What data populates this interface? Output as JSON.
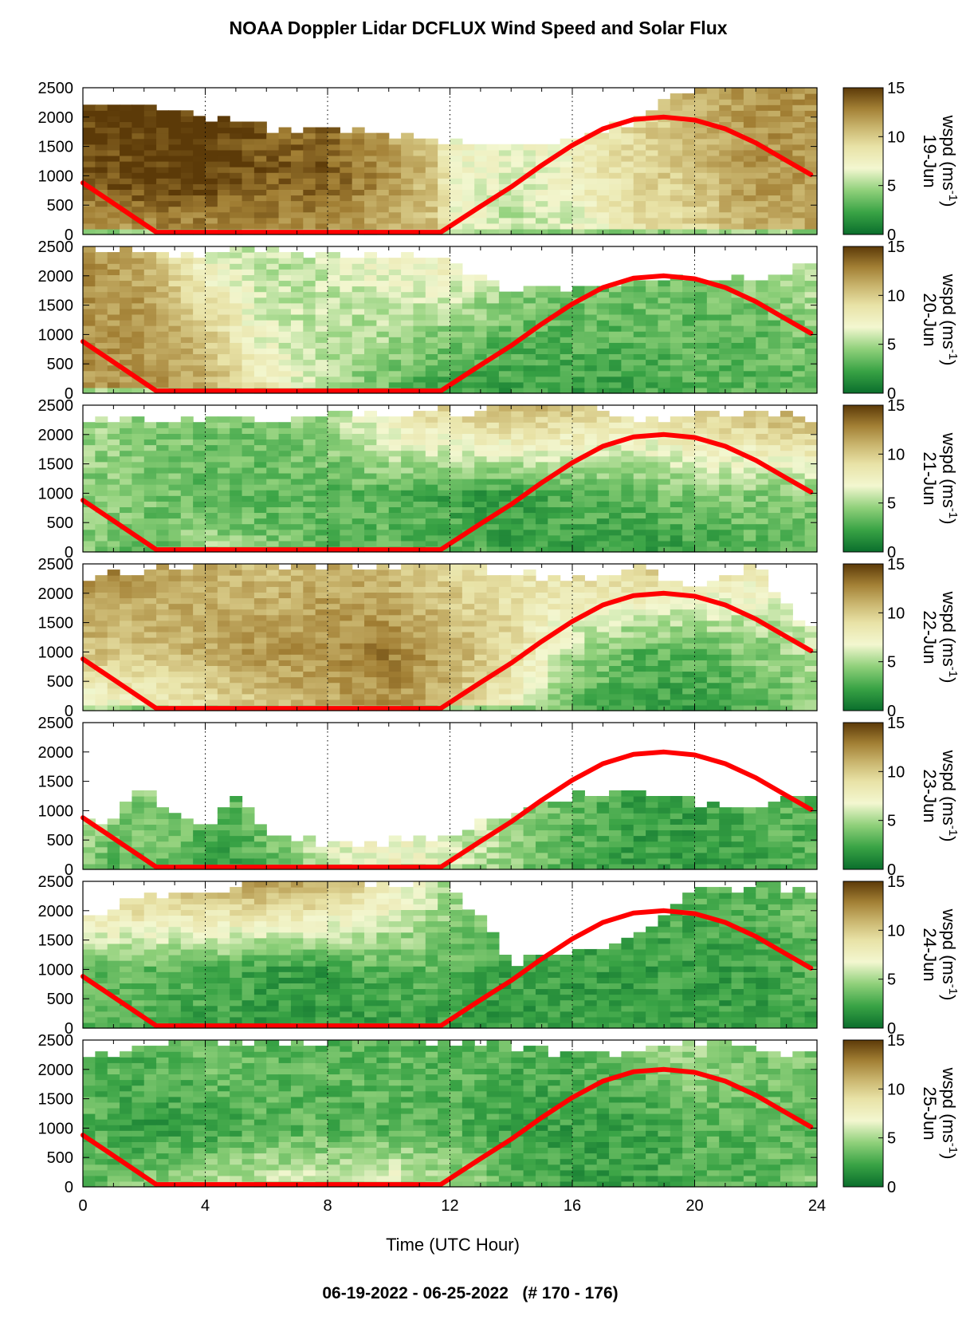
{
  "title": "NOAA Doppler Lidar DCFLUX Wind Speed and Solar Flux",
  "footer": "06-19-2022 - 06-25-2022   (# 170 - 176)",
  "chart_data": {
    "type": "heatmap",
    "x": {
      "label": "Time (UTC Hour)",
      "range": [
        0,
        24
      ],
      "ticks": [
        "0",
        "4",
        "8",
        "12",
        "16",
        "20",
        "24"
      ],
      "grid": "dotted vertical lines at 4, 8, 12, 16, 20"
    },
    "y": {
      "range": [
        0,
        2500
      ],
      "ticks": [
        "0",
        "500",
        "1000",
        "1500",
        "2000",
        "2500"
      ]
    },
    "colorbar": {
      "range": [
        0,
        15
      ],
      "ticks": [
        "0",
        "5",
        "10",
        "15"
      ],
      "label_prefix": "wspd (ms",
      "label_sup": "-1",
      "label_suffix": ")",
      "colors": [
        "#0a6e2c",
        "#39a345",
        "#8fd07a",
        "#f3f7d0",
        "#e8e2a6",
        "#c9b56e",
        "#a27f34",
        "#5c3a08"
      ]
    },
    "solar_flux_curve": {
      "color": "#ff0000",
      "x": [
        0,
        2.4,
        11.7,
        13,
        14,
        15,
        16,
        17,
        18,
        19,
        20,
        21,
        22,
        23,
        23.8
      ],
      "y": [
        880,
        40,
        40,
        480,
        810,
        1180,
        1520,
        1800,
        1960,
        2000,
        1950,
        1800,
        1560,
        1260,
        1020
      ]
    },
    "panels": [
      {
        "day": "19-Jun",
        "profile": {
          "x": [
            0,
            2,
            4,
            6,
            8,
            10,
            11.5,
            12,
            14,
            16,
            18,
            20,
            22,
            24
          ],
          "top": [
            2150,
            2200,
            2000,
            1800,
            1700,
            1650,
            1550,
            1500,
            1450,
            1650,
            1900,
            2450,
            2500,
            2500
          ],
          "low": [
            11,
            12,
            12,
            12,
            12,
            11,
            10,
            7,
            5,
            6,
            8,
            9,
            11,
            11
          ],
          "mid": [
            14,
            15,
            15,
            14,
            14,
            12,
            10,
            7,
            6,
            7,
            9,
            10,
            12,
            12
          ],
          "up": [
            15,
            15,
            15,
            14,
            13,
            11,
            9,
            7,
            7,
            8,
            9,
            11,
            12,
            12
          ]
        }
      },
      {
        "day": "20-Jun",
        "profile": {
          "x": [
            0,
            2,
            4,
            6,
            8,
            10,
            12,
            14,
            16,
            18,
            20,
            22,
            24
          ],
          "top": [
            2400,
            2350,
            2350,
            2400,
            2350,
            2300,
            2200,
            1700,
            1750,
            1850,
            1900,
            1900,
            2200
          ],
          "low": [
            12,
            12,
            11,
            8,
            5,
            3,
            2,
            2,
            2,
            2,
            3,
            3,
            3
          ],
          "mid": [
            12,
            12,
            10,
            6,
            5,
            5,
            4,
            3,
            3,
            3,
            3,
            3,
            4
          ],
          "up": [
            12,
            11,
            6,
            5,
            6,
            7,
            8,
            6,
            4,
            4,
            4,
            5,
            6
          ]
        }
      },
      {
        "day": "21-Jun",
        "profile": {
          "x": [
            0,
            2,
            4,
            6,
            8,
            10,
            12,
            14,
            16,
            18,
            20,
            22,
            24
          ],
          "top": [
            2250,
            2200,
            2200,
            2250,
            2250,
            2300,
            2350,
            2450,
            2450,
            2200,
            2300,
            2350,
            2200
          ],
          "low": [
            4,
            3,
            5,
            4,
            3,
            3,
            3,
            2,
            2,
            2,
            2,
            3,
            3
          ],
          "mid": [
            4,
            4,
            3,
            3,
            3,
            3,
            2,
            2,
            3,
            3,
            4,
            4,
            4
          ],
          "up": [
            5,
            4,
            4,
            4,
            5,
            8,
            10,
            11,
            10,
            9,
            10,
            11,
            12
          ]
        }
      },
      {
        "day": "22-Jun",
        "profile": {
          "x": [
            0,
            2,
            4,
            6,
            8,
            10,
            12,
            14,
            16,
            18,
            20,
            22,
            23.8
          ],
          "top": [
            2200,
            2350,
            2450,
            2450,
            2450,
            2450,
            2450,
            2300,
            2200,
            2450,
            2000,
            2450,
            1300
          ],
          "low": [
            6,
            7,
            8,
            10,
            11,
            12,
            10,
            7,
            3,
            2,
            2,
            3,
            4
          ],
          "mid": [
            10,
            10,
            11,
            12,
            12,
            13,
            11,
            9,
            5,
            3,
            3,
            4,
            5
          ],
          "up": [
            13,
            12,
            11,
            10,
            11,
            10,
            9,
            8,
            9,
            10,
            9,
            8,
            7
          ]
        }
      },
      {
        "day": "23-Jun",
        "profile": {
          "x": [
            0,
            1,
            2,
            3,
            4,
            5,
            6,
            8,
            10,
            12,
            14,
            16,
            18,
            20,
            22,
            24
          ],
          "top": [
            700,
            800,
            1400,
            900,
            600,
            1200,
            550,
            400,
            420,
            550,
            900,
            1200,
            1300,
            1100,
            1050,
            1200
          ],
          "low": [
            4,
            3,
            3,
            3,
            2,
            2,
            3,
            6,
            7,
            6,
            4,
            3,
            2,
            2,
            2,
            3
          ],
          "mid": [
            5,
            4,
            4,
            4,
            3,
            3,
            4,
            6,
            7,
            6,
            5,
            3,
            2,
            2,
            3,
            3
          ],
          "up": [
            5,
            4,
            4,
            5,
            4,
            4,
            5,
            6,
            6,
            5,
            5,
            4,
            3,
            3,
            3,
            4
          ]
        }
      },
      {
        "day": "24-Jun",
        "profile": {
          "x": [
            0,
            2,
            4,
            6,
            8,
            10,
            12,
            14,
            16,
            18,
            20,
            22,
            24
          ],
          "top": [
            1800,
            2200,
            2350,
            2450,
            2450,
            2450,
            2450,
            1100,
            1250,
            1500,
            2350,
            2350,
            2300
          ],
          "low": [
            3,
            3,
            2,
            2,
            2,
            2,
            2,
            2,
            2,
            2,
            2,
            2,
            2
          ],
          "mid": [
            3,
            3,
            3,
            2,
            2,
            3,
            3,
            2,
            2,
            2,
            2,
            2,
            3
          ],
          "up": [
            11,
            11,
            11,
            12,
            11,
            8,
            5,
            4,
            3,
            3,
            3,
            3,
            4
          ]
        }
      },
      {
        "day": "25-Jun",
        "profile": {
          "x": [
            0,
            2,
            4,
            6,
            8,
            10,
            12,
            14,
            16,
            18,
            20,
            22,
            24
          ],
          "top": [
            2200,
            2350,
            2400,
            2400,
            2400,
            2450,
            2450,
            2350,
            2250,
            2200,
            2450,
            2300,
            2250
          ],
          "low": [
            3,
            4,
            5,
            6,
            6,
            7,
            5,
            3,
            2,
            2,
            3,
            3,
            4
          ],
          "mid": [
            3,
            2,
            2,
            3,
            3,
            3,
            3,
            2,
            2,
            2,
            3,
            3,
            3
          ],
          "up": [
            3,
            3,
            4,
            3,
            3,
            3,
            3,
            3,
            3,
            4,
            5,
            4,
            4
          ]
        }
      }
    ]
  }
}
